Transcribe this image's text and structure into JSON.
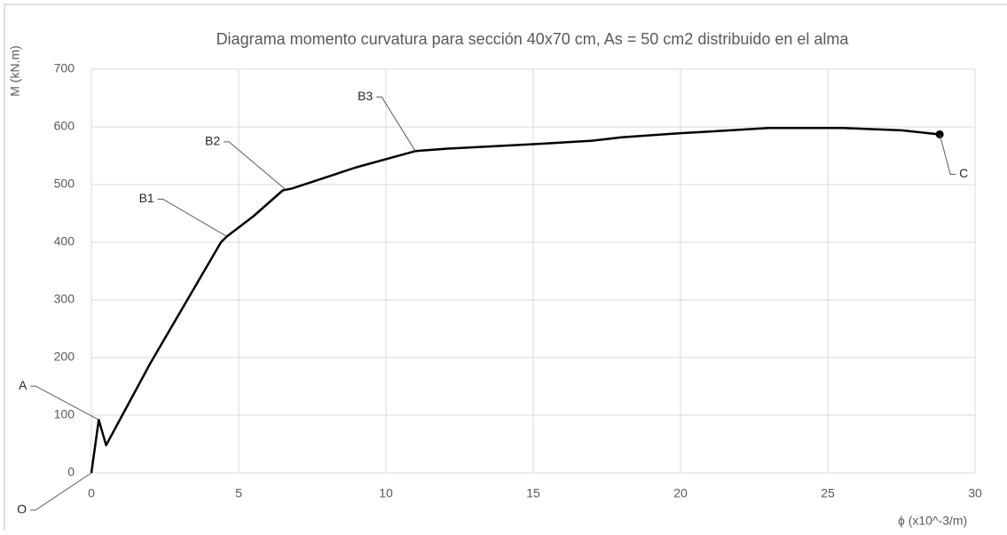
{
  "chart_data": {
    "type": "line",
    "title": "Diagrama momento curvatura para sección 40x70 cm, As = 50 cm2 distribuido en el alma",
    "x_label": "ϕ (x10^-3/m)",
    "y_label": "M (kN.m)",
    "x": [
      0,
      0.25,
      0.5,
      2,
      4.4,
      4.6,
      5.5,
      6.5,
      6.8,
      7.1,
      9,
      11,
      12,
      15,
      17,
      18,
      20,
      21,
      23,
      25.5,
      27.5,
      28.8
    ],
    "series": [
      {
        "name": "M",
        "color": "#000000",
        "values": [
          0,
          92,
          48,
          190,
          400,
          410,
          445,
          490,
          493,
          498,
          530,
          558,
          562,
          570,
          576,
          582,
          589,
          592,
          598,
          598,
          594,
          587
        ]
      }
    ],
    "xlim": [
      0,
      30
    ],
    "xticks": [
      0,
      5,
      10,
      15,
      20,
      25,
      30
    ],
    "ylim": [
      0,
      700
    ],
    "yticks": [
      0,
      100,
      200,
      300,
      400,
      500,
      600,
      700
    ],
    "grid": true,
    "end_marker": true,
    "annotations": [
      {
        "text": "O",
        "x": 0,
        "y": 0
      },
      {
        "text": "A",
        "x": 0.25,
        "y": 92
      },
      {
        "text": "B1",
        "x": 4.6,
        "y": 410
      },
      {
        "text": "B2",
        "x": 6.6,
        "y": 491
      },
      {
        "text": "B3",
        "x": 11,
        "y": 558
      },
      {
        "text": "C",
        "x": 28.8,
        "y": 587
      }
    ]
  }
}
